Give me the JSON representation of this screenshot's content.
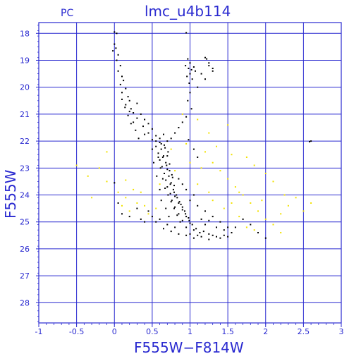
{
  "chart_data": {
    "type": "scatter",
    "title": "lmc_u4b114",
    "corner_label": "PC",
    "xlabel": "F555W−F814W",
    "ylabel": "F555W",
    "xlim": [
      -1,
      3
    ],
    "ylim": [
      28.75,
      17.6
    ],
    "y_inverted": true,
    "grid": true,
    "x_ticks": [
      "-1",
      "-0.5",
      "0",
      "0.5",
      "1",
      "1.5",
      "2",
      "2.5",
      "3"
    ],
    "x_tick_values": [
      -1,
      -0.5,
      0,
      0.5,
      1,
      1.5,
      2,
      2.5,
      3
    ],
    "y_ticks": [
      "18",
      "19",
      "20",
      "21",
      "22",
      "23",
      "24",
      "25",
      "26",
      "27",
      "28"
    ],
    "y_tick_values": [
      18,
      19,
      20,
      21,
      22,
      23,
      24,
      25,
      26,
      27,
      28
    ],
    "colors": {
      "axis": "#2a2ad0",
      "grid": "#2a2ad0",
      "text": "#2a2ad0",
      "series_black": "#000000",
      "series_yellow": "#f2e200"
    },
    "series": [
      {
        "color": "#000000",
        "points": [
          [
            0.0,
            17.95
          ],
          [
            0.03,
            18.0
          ],
          [
            0.0,
            18.4
          ],
          [
            0.02,
            18.55
          ],
          [
            -0.02,
            18.65
          ],
          [
            0.05,
            18.8
          ],
          [
            0.03,
            19.0
          ],
          [
            0.08,
            19.2
          ],
          [
            0.05,
            19.4
          ],
          [
            0.1,
            19.6
          ],
          [
            0.12,
            19.75
          ],
          [
            0.08,
            19.9
          ],
          [
            0.15,
            20.05
          ],
          [
            0.1,
            20.2
          ],
          [
            0.18,
            20.35
          ],
          [
            0.2,
            20.5
          ],
          [
            0.15,
            20.65
          ],
          [
            0.22,
            20.8
          ],
          [
            0.3,
            20.6
          ],
          [
            0.25,
            20.95
          ],
          [
            0.35,
            21.0
          ],
          [
            0.3,
            21.15
          ],
          [
            0.4,
            21.2
          ],
          [
            0.45,
            21.35
          ],
          [
            0.38,
            21.45
          ],
          [
            0.5,
            21.55
          ],
          [
            0.45,
            21.7
          ],
          [
            0.55,
            21.8
          ],
          [
            0.5,
            21.95
          ],
          [
            0.6,
            22.05
          ],
          [
            0.55,
            22.2
          ],
          [
            0.62,
            22.3
          ],
          [
            0.58,
            22.45
          ],
          [
            0.65,
            22.55
          ],
          [
            0.6,
            22.7
          ],
          [
            0.68,
            22.8
          ],
          [
            0.63,
            22.95
          ],
          [
            0.7,
            23.05
          ],
          [
            0.66,
            23.2
          ],
          [
            0.72,
            23.3
          ],
          [
            0.68,
            23.45
          ],
          [
            0.75,
            23.55
          ],
          [
            0.7,
            23.7
          ],
          [
            0.78,
            23.8
          ],
          [
            0.74,
            23.95
          ],
          [
            0.8,
            24.05
          ],
          [
            0.76,
            24.2
          ],
          [
            0.85,
            24.3
          ],
          [
            0.8,
            24.45
          ],
          [
            0.9,
            24.55
          ],
          [
            0.85,
            24.7
          ],
          [
            0.95,
            24.8
          ],
          [
            0.9,
            24.95
          ],
          [
            1.0,
            25.05
          ],
          [
            0.95,
            25.2
          ],
          [
            1.05,
            25.3
          ],
          [
            1.0,
            25.45
          ],
          [
            1.1,
            25.5
          ],
          [
            0.62,
            22.1
          ],
          [
            0.67,
            22.25
          ],
          [
            0.71,
            22.4
          ],
          [
            0.64,
            22.6
          ],
          [
            0.69,
            22.9
          ],
          [
            0.73,
            23.1
          ],
          [
            0.77,
            23.35
          ],
          [
            0.74,
            23.6
          ],
          [
            0.79,
            23.9
          ],
          [
            0.83,
            24.1
          ],
          [
            0.88,
            24.35
          ],
          [
            0.93,
            24.6
          ],
          [
            0.98,
            24.85
          ],
          [
            1.03,
            25.1
          ],
          [
            1.08,
            25.25
          ],
          [
            1.13,
            25.4
          ],
          [
            1.18,
            25.35
          ],
          [
            1.25,
            25.45
          ],
          [
            1.3,
            25.5
          ],
          [
            1.35,
            25.55
          ],
          [
            1.4,
            25.6
          ],
          [
            1.45,
            25.5
          ],
          [
            1.5,
            25.55
          ],
          [
            1.55,
            25.4
          ],
          [
            1.2,
            25.1
          ],
          [
            1.15,
            24.9
          ],
          [
            1.25,
            24.95
          ],
          [
            1.35,
            25.2
          ],
          [
            1.45,
            25.3
          ],
          [
            0.8,
            25.2
          ],
          [
            0.7,
            25.1
          ],
          [
            0.6,
            24.9
          ],
          [
            0.5,
            24.8
          ],
          [
            0.45,
            24.6
          ],
          [
            0.55,
            25.0
          ],
          [
            0.65,
            25.25
          ],
          [
            0.75,
            25.35
          ],
          [
            0.85,
            25.45
          ],
          [
            0.95,
            25.5
          ],
          [
            1.05,
            25.6
          ],
          [
            1.15,
            25.55
          ],
          [
            1.25,
            25.65
          ],
          [
            0.97,
            18.95
          ],
          [
            1.0,
            19.1
          ],
          [
            0.98,
            19.3
          ],
          [
            1.02,
            19.35
          ],
          [
            1.05,
            19.25
          ],
          [
            1.0,
            19.5
          ],
          [
            0.96,
            19.6
          ],
          [
            1.03,
            19.7
          ],
          [
            0.99,
            19.85
          ],
          [
            1.07,
            19.4
          ],
          [
            0.94,
            19.2
          ],
          [
            1.0,
            20.2
          ],
          [
            0.97,
            20.5
          ],
          [
            1.02,
            20.8
          ],
          [
            0.95,
            21.1
          ],
          [
            0.9,
            21.3
          ],
          [
            0.85,
            21.5
          ],
          [
            0.8,
            21.7
          ],
          [
            0.75,
            21.9
          ],
          [
            1.1,
            20.0
          ],
          [
            1.2,
            19.7
          ],
          [
            1.25,
            19.2
          ],
          [
            1.2,
            18.9
          ],
          [
            1.3,
            19.4
          ],
          [
            1.15,
            19.5
          ],
          [
            0.95,
            17.98
          ],
          [
            0.0,
            23.55
          ],
          [
            0.05,
            24.3
          ],
          [
            0.1,
            24.7
          ],
          [
            0.2,
            24.8
          ],
          [
            0.3,
            24.5
          ],
          [
            0.35,
            24.9
          ],
          [
            0.4,
            25.0
          ],
          [
            2.6,
            22.0
          ],
          [
            2.58,
            22.02
          ],
          [
            1.9,
            25.4
          ],
          [
            2.0,
            25.6
          ],
          [
            1.6,
            25.2
          ],
          [
            1.7,
            24.9
          ],
          [
            1.8,
            25.1
          ],
          [
            0.55,
            22.0
          ],
          [
            0.58,
            22.6
          ],
          [
            0.61,
            23.0
          ],
          [
            0.64,
            23.4
          ],
          [
            0.67,
            23.75
          ],
          [
            0.71,
            24.0
          ],
          [
            0.75,
            24.25
          ],
          [
            0.79,
            24.5
          ],
          [
            0.83,
            24.75
          ],
          [
            0.87,
            25.0
          ],
          [
            0.66,
            22.15
          ],
          [
            0.7,
            22.55
          ],
          [
            0.73,
            22.85
          ],
          [
            0.76,
            23.25
          ],
          [
            0.79,
            23.65
          ],
          [
            0.82,
            24.0
          ],
          [
            0.86,
            24.25
          ],
          [
            0.9,
            24.45
          ],
          [
            0.94,
            24.7
          ],
          [
            0.99,
            24.95
          ],
          [
            0.6,
            21.9
          ],
          [
            0.65,
            21.75
          ],
          [
            0.7,
            22.0
          ],
          [
            0.5,
            22.3
          ],
          [
            0.52,
            22.8
          ],
          [
            0.56,
            23.3
          ],
          [
            0.6,
            23.8
          ],
          [
            0.62,
            24.2
          ],
          [
            0.68,
            24.5
          ],
          [
            0.72,
            24.8
          ],
          [
            1.1,
            24.4
          ],
          [
            1.2,
            24.6
          ],
          [
            1.3,
            24.8
          ],
          [
            1.4,
            25.0
          ],
          [
            1.5,
            25.2
          ],
          [
            1.0,
            24.2
          ],
          [
            1.05,
            24.0
          ],
          [
            0.95,
            23.8
          ],
          [
            0.9,
            23.6
          ],
          [
            0.85,
            23.4
          ],
          [
            1.22,
            18.95
          ],
          [
            1.25,
            19.1
          ],
          [
            1.3,
            19.3
          ],
          [
            0.98,
            21.95
          ],
          [
            1.05,
            22.3
          ],
          [
            1.1,
            22.6
          ],
          [
            0.2,
            20.9
          ],
          [
            0.25,
            21.3
          ],
          [
            0.28,
            21.6
          ],
          [
            0.32,
            21.9
          ],
          [
            0.1,
            20.45
          ],
          [
            0.14,
            20.75
          ],
          [
            0.18,
            21.05
          ],
          [
            0.22,
            21.35
          ],
          [
            0.4,
            21.75
          ]
        ]
      },
      {
        "color": "#f2e200",
        "points": [
          [
            -0.5,
            22.9
          ],
          [
            -0.35,
            23.3
          ],
          [
            -0.2,
            23.0
          ],
          [
            -0.1,
            23.5
          ],
          [
            0.05,
            23.9
          ],
          [
            0.15,
            24.1
          ],
          [
            0.25,
            23.8
          ],
          [
            0.3,
            24.3
          ],
          [
            0.2,
            24.6
          ],
          [
            0.1,
            24.4
          ],
          [
            -0.3,
            24.1
          ],
          [
            -0.1,
            22.4
          ],
          [
            0.45,
            24.7
          ],
          [
            0.55,
            24.5
          ],
          [
            1.2,
            22.4
          ],
          [
            1.3,
            22.8
          ],
          [
            1.4,
            23.1
          ],
          [
            1.5,
            23.4
          ],
          [
            1.6,
            23.7
          ],
          [
            1.7,
            24.0
          ],
          [
            1.8,
            24.3
          ],
          [
            1.9,
            24.6
          ],
          [
            2.0,
            24.9
          ],
          [
            2.1,
            25.1
          ],
          [
            2.2,
            24.7
          ],
          [
            2.3,
            24.4
          ],
          [
            2.4,
            24.1
          ],
          [
            2.1,
            23.5
          ],
          [
            2.0,
            23.2
          ],
          [
            1.85,
            22.9
          ],
          [
            1.75,
            22.6
          ],
          [
            1.55,
            22.5
          ],
          [
            1.35,
            22.2
          ],
          [
            1.25,
            21.7
          ],
          [
            1.5,
            21.4
          ],
          [
            1.1,
            21.2
          ],
          [
            0.9,
            21.0
          ],
          [
            1.0,
            22.8
          ],
          [
            1.1,
            23.6
          ],
          [
            1.3,
            24.2
          ],
          [
            1.45,
            24.5
          ],
          [
            1.65,
            24.8
          ],
          [
            1.75,
            25.2
          ],
          [
            1.85,
            25.3
          ],
          [
            2.2,
            25.4
          ],
          [
            2.5,
            24.6
          ],
          [
            2.6,
            24.3
          ],
          [
            0.35,
            23.9
          ],
          [
            0.4,
            24.4
          ],
          [
            0.6,
            23.6
          ],
          [
            0.8,
            23.1
          ],
          [
            0.75,
            22.3
          ],
          [
            0.95,
            22.1
          ],
          [
            1.15,
            23.0
          ],
          [
            1.25,
            23.9
          ],
          [
            1.55,
            24.3
          ],
          [
            1.65,
            23.9
          ],
          [
            1.95,
            24.2
          ],
          [
            2.25,
            24.0
          ],
          [
            0.15,
            23.45
          ]
        ]
      }
    ]
  }
}
